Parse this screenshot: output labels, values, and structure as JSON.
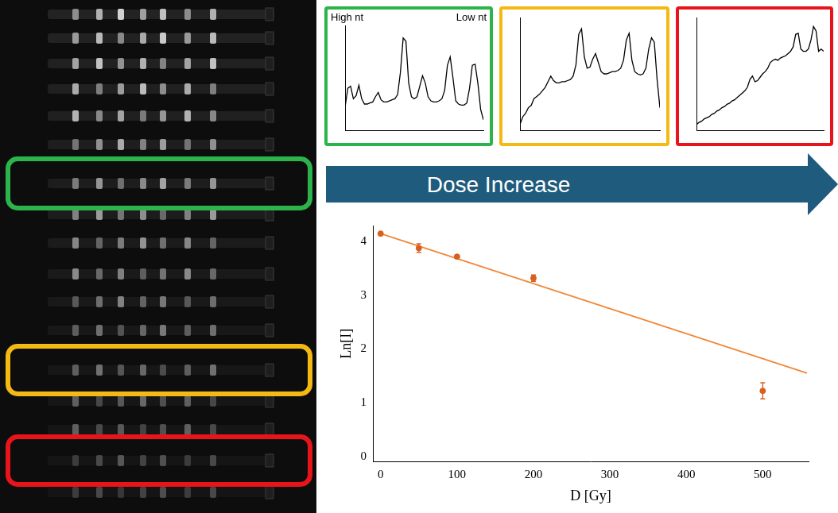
{
  "chart_data": [
    {
      "type": "line",
      "color": "#2cb34b",
      "annotations": [
        "High nt",
        "Low nt"
      ],
      "xlim": [
        0,
        100
      ],
      "ylim": [
        0,
        1
      ],
      "tick_labels": false,
      "grid": false,
      "x": [
        0,
        2,
        4,
        6,
        8,
        10,
        12,
        14,
        16,
        18,
        20,
        22,
        24,
        26,
        28,
        30,
        32,
        34,
        36,
        38,
        40,
        42,
        44,
        46,
        48,
        50,
        52,
        54,
        56,
        58,
        60,
        62,
        64,
        66,
        68,
        70,
        72,
        74,
        76,
        78,
        80,
        82,
        84,
        86,
        88,
        90,
        92,
        94,
        96,
        98,
        100
      ],
      "series": [
        {
          "color": "#000000",
          "values": [
            0.22,
            0.4,
            0.42,
            0.3,
            0.33,
            0.43,
            0.3,
            0.25,
            0.25,
            0.26,
            0.27,
            0.32,
            0.36,
            0.29,
            0.27,
            0.27,
            0.28,
            0.29,
            0.3,
            0.34,
            0.55,
            0.88,
            0.85,
            0.45,
            0.32,
            0.3,
            0.32,
            0.42,
            0.52,
            0.45,
            0.32,
            0.28,
            0.27,
            0.27,
            0.28,
            0.3,
            0.38,
            0.62,
            0.7,
            0.5,
            0.28,
            0.25,
            0.24,
            0.24,
            0.26,
            0.4,
            0.62,
            0.63,
            0.45,
            0.2,
            0.1
          ]
        }
      ]
    },
    {
      "type": "line",
      "color": "#f5b914",
      "xlim": [
        0,
        100
      ],
      "ylim": [
        0,
        1
      ],
      "tick_labels": false,
      "grid": false,
      "x": [
        0,
        2,
        4,
        6,
        8,
        10,
        12,
        14,
        16,
        18,
        20,
        22,
        24,
        26,
        28,
        30,
        32,
        34,
        36,
        38,
        40,
        42,
        44,
        46,
        48,
        50,
        52,
        54,
        56,
        58,
        60,
        62,
        64,
        66,
        68,
        70,
        72,
        74,
        76,
        78,
        80,
        82,
        84,
        86,
        88,
        90,
        92,
        94,
        96,
        98,
        100
      ],
      "series": [
        {
          "color": "#000000",
          "values": [
            0.05,
            0.12,
            0.15,
            0.2,
            0.22,
            0.28,
            0.3,
            0.32,
            0.35,
            0.38,
            0.43,
            0.48,
            0.44,
            0.42,
            0.42,
            0.43,
            0.43,
            0.44,
            0.45,
            0.48,
            0.58,
            0.85,
            0.9,
            0.65,
            0.55,
            0.56,
            0.63,
            0.68,
            0.6,
            0.52,
            0.5,
            0.5,
            0.51,
            0.52,
            0.52,
            0.53,
            0.55,
            0.62,
            0.8,
            0.86,
            0.62,
            0.52,
            0.5,
            0.49,
            0.5,
            0.55,
            0.72,
            0.82,
            0.78,
            0.45,
            0.2
          ]
        }
      ]
    },
    {
      "type": "line",
      "color": "#e8141b",
      "xlim": [
        0,
        100
      ],
      "ylim": [
        0,
        1
      ],
      "tick_labels": false,
      "grid": false,
      "x": [
        0,
        2,
        4,
        6,
        8,
        10,
        12,
        14,
        16,
        18,
        20,
        22,
        24,
        26,
        28,
        30,
        32,
        34,
        36,
        38,
        40,
        42,
        44,
        46,
        48,
        50,
        52,
        54,
        56,
        58,
        60,
        62,
        64,
        66,
        68,
        70,
        72,
        74,
        76,
        78,
        80,
        82,
        84,
        86,
        88,
        90,
        92,
        94,
        96,
        98,
        100
      ],
      "series": [
        {
          "color": "#000000",
          "values": [
            0.05,
            0.07,
            0.08,
            0.1,
            0.11,
            0.12,
            0.14,
            0.15,
            0.17,
            0.18,
            0.2,
            0.21,
            0.23,
            0.24,
            0.26,
            0.27,
            0.29,
            0.31,
            0.33,
            0.35,
            0.38,
            0.45,
            0.48,
            0.43,
            0.44,
            0.47,
            0.5,
            0.52,
            0.55,
            0.6,
            0.62,
            0.63,
            0.62,
            0.64,
            0.65,
            0.66,
            0.68,
            0.7,
            0.74,
            0.85,
            0.86,
            0.72,
            0.7,
            0.7,
            0.72,
            0.8,
            0.92,
            0.88,
            0.7,
            0.72,
            0.7
          ]
        }
      ]
    },
    {
      "type": "scatter",
      "x_label": "D [Gy]",
      "y_label": "Ln[I]",
      "xlim": [
        -10,
        560
      ],
      "ylim": [
        -0.1,
        4.3
      ],
      "xticks": [
        0,
        100,
        200,
        300,
        400,
        500
      ],
      "yticks": [
        0,
        1,
        2,
        3,
        4
      ],
      "grid": false,
      "series": [
        {
          "type": "scatter",
          "color": "#d9601f",
          "marker": "circle",
          "x": [
            0,
            50,
            100,
            200,
            500
          ],
          "values": [
            4.15,
            3.88,
            3.72,
            3.32,
            1.22
          ],
          "errors": [
            0.02,
            0.08,
            0.03,
            0.06,
            0.15
          ]
        },
        {
          "type": "line",
          "color": "#f0893a",
          "line_style": "solid",
          "x": [
            0,
            558
          ],
          "values": [
            4.15,
            1.55
          ]
        }
      ]
    }
  ],
  "arrow": {
    "text": "Dose Increase",
    "color": "#1f5b7c"
  }
}
